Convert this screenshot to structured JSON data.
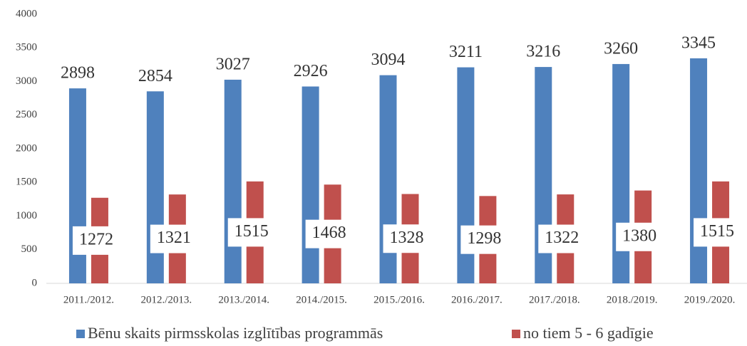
{
  "chart_data": {
    "type": "bar",
    "categories": [
      "2011./2012.",
      "2012./2013.",
      "2013./2014.",
      "2014./2015.",
      "2015./2016.",
      "2016./2017.",
      "2017./2018.",
      "2018./2019.",
      "2019./2020."
    ],
    "series": [
      {
        "name": "Bēnu skaits pirmsskolas izglītības programmās",
        "color": "#4f81bd",
        "values": [
          2898,
          2854,
          3027,
          2926,
          3094,
          3211,
          3216,
          3260,
          3345
        ]
      },
      {
        "name": "no tiem 5 - 6 gadīgie",
        "color": "#c0504d",
        "values": [
          1272,
          1321,
          1515,
          1468,
          1328,
          1298,
          1322,
          1380,
          1515
        ]
      }
    ],
    "ylim": [
      0,
      4000
    ],
    "yticks": [
      0,
      500,
      1000,
      1500,
      2000,
      2500,
      3000,
      3500,
      4000
    ],
    "grid": false,
    "legend": "bottom"
  }
}
